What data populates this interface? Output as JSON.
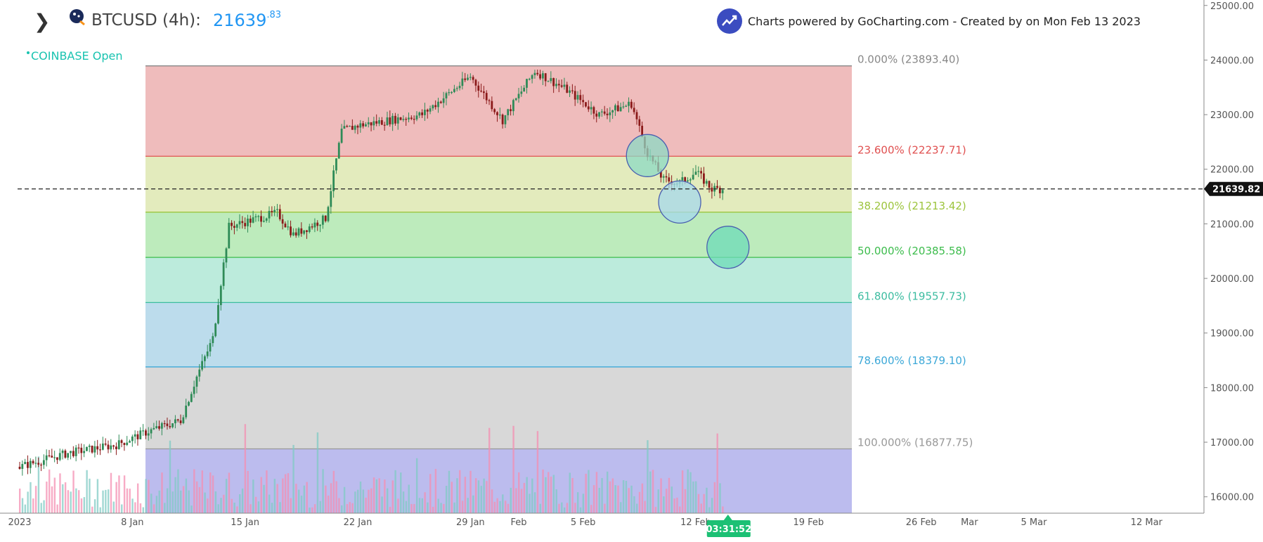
{
  "header": {
    "symbol": "BTCUSD (4h):",
    "price_main": "21639",
    "price_decimals": ".83",
    "exchange_status": "COINBASE Open",
    "powered_by": "Charts powered by GoCharting.com - Created by  on Mon Feb 13 2023"
  },
  "colors": {
    "up": "#2e8b57",
    "down": "#8b1a1a",
    "volume_up": "#80cbc4",
    "volume_down": "#f48fb1",
    "accent": "#2196f3"
  },
  "chart_data": {
    "type": "candlestick",
    "symbol": "BTCUSD",
    "interval": "4h",
    "ylim": [
      15700,
      25100
    ],
    "y_ticks": [
      "25000.00",
      "24000.00",
      "23000.00",
      "22000.00",
      "21000.00",
      "20000.00",
      "19000.00",
      "18000.00",
      "17000.00",
      "16000.00"
    ],
    "x_ticks": [
      "2023",
      "8 Jan",
      "15 Jan",
      "22 Jan",
      "29 Jan",
      "Feb",
      "5 Feb",
      "12 Feb",
      "19 Feb",
      "26 Feb",
      "Mar",
      "5 Mar",
      "12 Mar"
    ],
    "last_price": "21639.82",
    "countdown": "03:31:52",
    "price_path": [
      {
        "date": "2023-01-01",
        "close": 16550
      },
      {
        "date": "2023-01-04",
        "close": 16800
      },
      {
        "date": "2023-01-07",
        "close": 16950
      },
      {
        "date": "2023-01-09",
        "close": 17200
      },
      {
        "date": "2023-01-11",
        "close": 17400
      },
      {
        "date": "2023-01-12",
        "close": 18200
      },
      {
        "date": "2023-01-13",
        "close": 18900
      },
      {
        "date": "2023-01-14",
        "close": 20950
      },
      {
        "date": "2023-01-17",
        "close": 21200
      },
      {
        "date": "2023-01-18",
        "close": 20800
      },
      {
        "date": "2023-01-20",
        "close": 21100
      },
      {
        "date": "2023-01-21",
        "close": 22700
      },
      {
        "date": "2023-01-22",
        "close": 22800
      },
      {
        "date": "2023-01-24",
        "close": 22900
      },
      {
        "date": "2023-01-26",
        "close": 23000
      },
      {
        "date": "2023-01-29",
        "close": 23700
      },
      {
        "date": "2023-01-31",
        "close": 22900
      },
      {
        "date": "2023-02-02",
        "close": 23800
      },
      {
        "date": "2023-02-04",
        "close": 23450
      },
      {
        "date": "2023-02-06",
        "close": 23000
      },
      {
        "date": "2023-02-08",
        "close": 23200
      },
      {
        "date": "2023-02-09",
        "close": 22300
      },
      {
        "date": "2023-02-10",
        "close": 21800
      },
      {
        "date": "2023-02-11",
        "close": 21750
      },
      {
        "date": "2023-02-12",
        "close": 21950
      },
      {
        "date": "2023-02-13",
        "close": 21640
      }
    ],
    "fib_levels": [
      {
        "label": "0.000% (23893.40)",
        "value": 23893.4,
        "color": "#888888",
        "fill": "#efbcbc"
      },
      {
        "label": "23.600% (22237.71)",
        "value": 22237.71,
        "color": "#e05050",
        "fill": "#e3ebbd"
      },
      {
        "label": "38.200% (21213.42)",
        "value": 21213.42,
        "color": "#9cc43c",
        "fill": "#bdebbc"
      },
      {
        "label": "50.000% (20385.58)",
        "value": 20385.58,
        "color": "#3cbc4c",
        "fill": "#bcebdc"
      },
      {
        "label": "61.800% (19557.73)",
        "value": 19557.73,
        "color": "#3cbca0",
        "fill": "#bcdcec"
      },
      {
        "label": "78.600% (18379.10)",
        "value": 18379.1,
        "color": "#3ca8d8",
        "fill": "#d8d8d8"
      },
      {
        "label": "100.000% (16877.75)",
        "value": 16877.75,
        "color": "#999999",
        "fill": "#bcbcee"
      }
    ],
    "annotations": [
      {
        "type": "circle",
        "date": "2023-02-09",
        "price": 22250,
        "fill": "#8cd9c4"
      },
      {
        "type": "circle",
        "date": "2023-02-11",
        "price": 21400,
        "fill": "#a5d8ec"
      },
      {
        "type": "circle",
        "date": "2023-02-14",
        "price": 20570,
        "fill": "#6edbb8"
      }
    ]
  }
}
